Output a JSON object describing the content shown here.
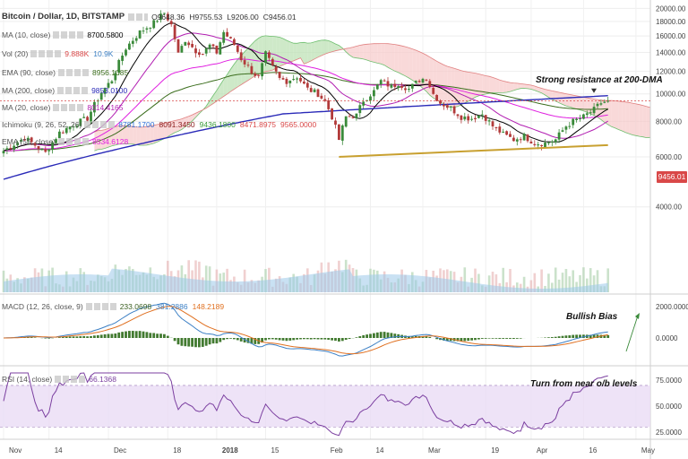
{
  "header": {
    "symbol": "Bitcoin / Dollar, 1D, BITSTAMP",
    "ohlc": {
      "o": "O9648.36",
      "h": "H9755.53",
      "l": "L9206.00",
      "c": "C9456.01"
    }
  },
  "indicators": [
    {
      "label": "MA (10, close)",
      "values": [
        {
          "text": "8700.5800",
          "color": "#000000"
        }
      ]
    },
    {
      "label": "Vol (20)",
      "values": [
        {
          "text": "9.888K",
          "color": "#d94848"
        },
        {
          "text": "10.9K",
          "color": "#3b7fc4"
        }
      ]
    },
    {
      "label": "EMA (90, close)",
      "values": [
        {
          "text": "8956.1085",
          "color": "#3c6e1e"
        }
      ]
    },
    {
      "label": "MA (200, close)",
      "values": [
        {
          "text": "9853.0100",
          "color": "#2a2ab8"
        }
      ]
    },
    {
      "label": "MA (20, close)",
      "values": [
        {
          "text": "8014.4165",
          "color": "#b21fb2"
        }
      ]
    },
    {
      "label": "Ichimoku (9, 26, 52, 26)",
      "values": [
        {
          "text": "8781.1700",
          "color": "#2f6fd6"
        },
        {
          "text": "8091.3450",
          "color": "#8b1a1a"
        },
        {
          "text": "9436.1800",
          "color": "#3a9a3a"
        },
        {
          "text": "8471.8975",
          "color": "#d94848"
        },
        {
          "text": "9565.0000",
          "color": "#d94848"
        }
      ]
    },
    {
      "label": "EMA (55, close)",
      "values": [
        {
          "text": "8534.6128",
          "color": "#e020e0"
        }
      ]
    }
  ],
  "macd": {
    "label": "MACD (12, 26, close, 9)",
    "values": [
      {
        "text": "233.0698",
        "color": "#3a5e20"
      },
      {
        "text": "381.2886",
        "color": "#3b7fc4"
      },
      {
        "text": "148.2189",
        "color": "#e07020"
      }
    ]
  },
  "rsi": {
    "label": "RSI (14, close)",
    "value": {
      "text": "66.1368",
      "color": "#7b3fa0"
    }
  },
  "annotations": {
    "resistance": "Strong resistance at 200-DMA",
    "bullish": "Bullish Bias",
    "rsi_note": "Turn from near o/b levels"
  },
  "price_badge": "9456.01",
  "colors": {
    "up": "#3a8a3a",
    "down": "#b23a3a",
    "ma200": "#2a2ab8",
    "ma10": "#000000",
    "ma20": "#b21fb2",
    "ema55": "#e020e0",
    "ema90": "#3c6e1e",
    "cloud_bull": "#b9e0b0",
    "cloud_bear": "#f7c9c9",
    "trend": "#c8a030"
  },
  "chart_data": {
    "type": "line",
    "title": "Bitcoin / Dollar, 1D, BITSTAMP",
    "price_axis": {
      "ticks": [
        4000,
        6000,
        8000,
        10000,
        12000,
        14000,
        16000,
        18000,
        20000
      ],
      "labels": [
        "4000.00",
        "6000.00",
        "8000.00",
        "10000.00",
        "12000.00",
        "14000.00",
        "16000.00",
        "18000.00",
        "20000.00"
      ],
      "ylim": [
        2000,
        20500
      ],
      "scale": "log"
    },
    "x_ticks": [
      {
        "label": "Nov",
        "day": 0,
        "bold": false
      },
      {
        "label": "14",
        "day": 13,
        "bold": false
      },
      {
        "label": "Dec",
        "day": 30,
        "bold": false
      },
      {
        "label": "18",
        "day": 47,
        "bold": false
      },
      {
        "label": "2018",
        "day": 61,
        "bold": true
      },
      {
        "label": "15",
        "day": 75,
        "bold": false
      },
      {
        "label": "Feb",
        "day": 92,
        "bold": false
      },
      {
        "label": "14",
        "day": 105,
        "bold": false
      },
      {
        "label": "Mar",
        "day": 120,
        "bold": false
      },
      {
        "label": "19",
        "day": 138,
        "bold": false
      },
      {
        "label": "Apr",
        "day": 151,
        "bold": false
      },
      {
        "label": "16",
        "day": 166,
        "bold": false
      },
      {
        "label": "May",
        "day": 181,
        "bold": false
      }
    ],
    "close_keypoints": [
      [
        0,
        6300
      ],
      [
        6,
        7000
      ],
      [
        12,
        6200
      ],
      [
        16,
        7300
      ],
      [
        20,
        7800
      ],
      [
        24,
        8200
      ],
      [
        28,
        10100
      ],
      [
        31,
        11200
      ],
      [
        35,
        14500
      ],
      [
        39,
        16500
      ],
      [
        43,
        17800
      ],
      [
        46,
        19300
      ],
      [
        48,
        17500
      ],
      [
        50,
        13800
      ],
      [
        52,
        15500
      ],
      [
        55,
        14200
      ],
      [
        57,
        13900
      ],
      [
        59,
        14800
      ],
      [
        61,
        14000
      ],
      [
        63,
        16500
      ],
      [
        66,
        14900
      ],
      [
        68,
        13300
      ],
      [
        71,
        12000
      ],
      [
        73,
        11400
      ],
      [
        75,
        13800
      ],
      [
        77,
        12400
      ],
      [
        79,
        11300
      ],
      [
        81,
        11100
      ],
      [
        84,
        11500
      ],
      [
        87,
        10400
      ],
      [
        90,
        10000
      ],
      [
        92,
        9400
      ],
      [
        94,
        8300
      ],
      [
        96,
        6900
      ],
      [
        98,
        8300
      ],
      [
        101,
        8400
      ],
      [
        103,
        9500
      ],
      [
        106,
        10200
      ],
      [
        108,
        11100
      ],
      [
        111,
        10600
      ],
      [
        113,
        10900
      ],
      [
        116,
        10400
      ],
      [
        119,
        11200
      ],
      [
        121,
        11400
      ],
      [
        123,
        10000
      ],
      [
        125,
        9300
      ],
      [
        128,
        8900
      ],
      [
        131,
        8300
      ],
      [
        134,
        8200
      ],
      [
        137,
        8500
      ],
      [
        140,
        7700
      ],
      [
        143,
        7200
      ],
      [
        146,
        6900
      ],
      [
        149,
        7100
      ],
      [
        152,
        6700
      ],
      [
        155,
        6700
      ],
      [
        158,
        6900
      ],
      [
        161,
        7700
      ],
      [
        163,
        8000
      ],
      [
        166,
        8300
      ],
      [
        169,
        8800
      ],
      [
        171,
        9300
      ],
      [
        173,
        9456
      ]
    ],
    "ma200_keypoints": [
      [
        0,
        5000
      ],
      [
        40,
        6700
      ],
      [
        80,
        8500
      ],
      [
        173,
        9853
      ]
    ],
    "trendline": [
      [
        96,
        6000
      ],
      [
        173,
        6600
      ]
    ],
    "rsi_axis": {
      "ticks": [
        25,
        50,
        75
      ],
      "labels": [
        "25.0000",
        "50.0000",
        "75.0000"
      ],
      "ob": 70,
      "os": 30
    },
    "macd_axis": {
      "labels": [
        "2000.0000",
        "0.0000"
      ]
    }
  }
}
